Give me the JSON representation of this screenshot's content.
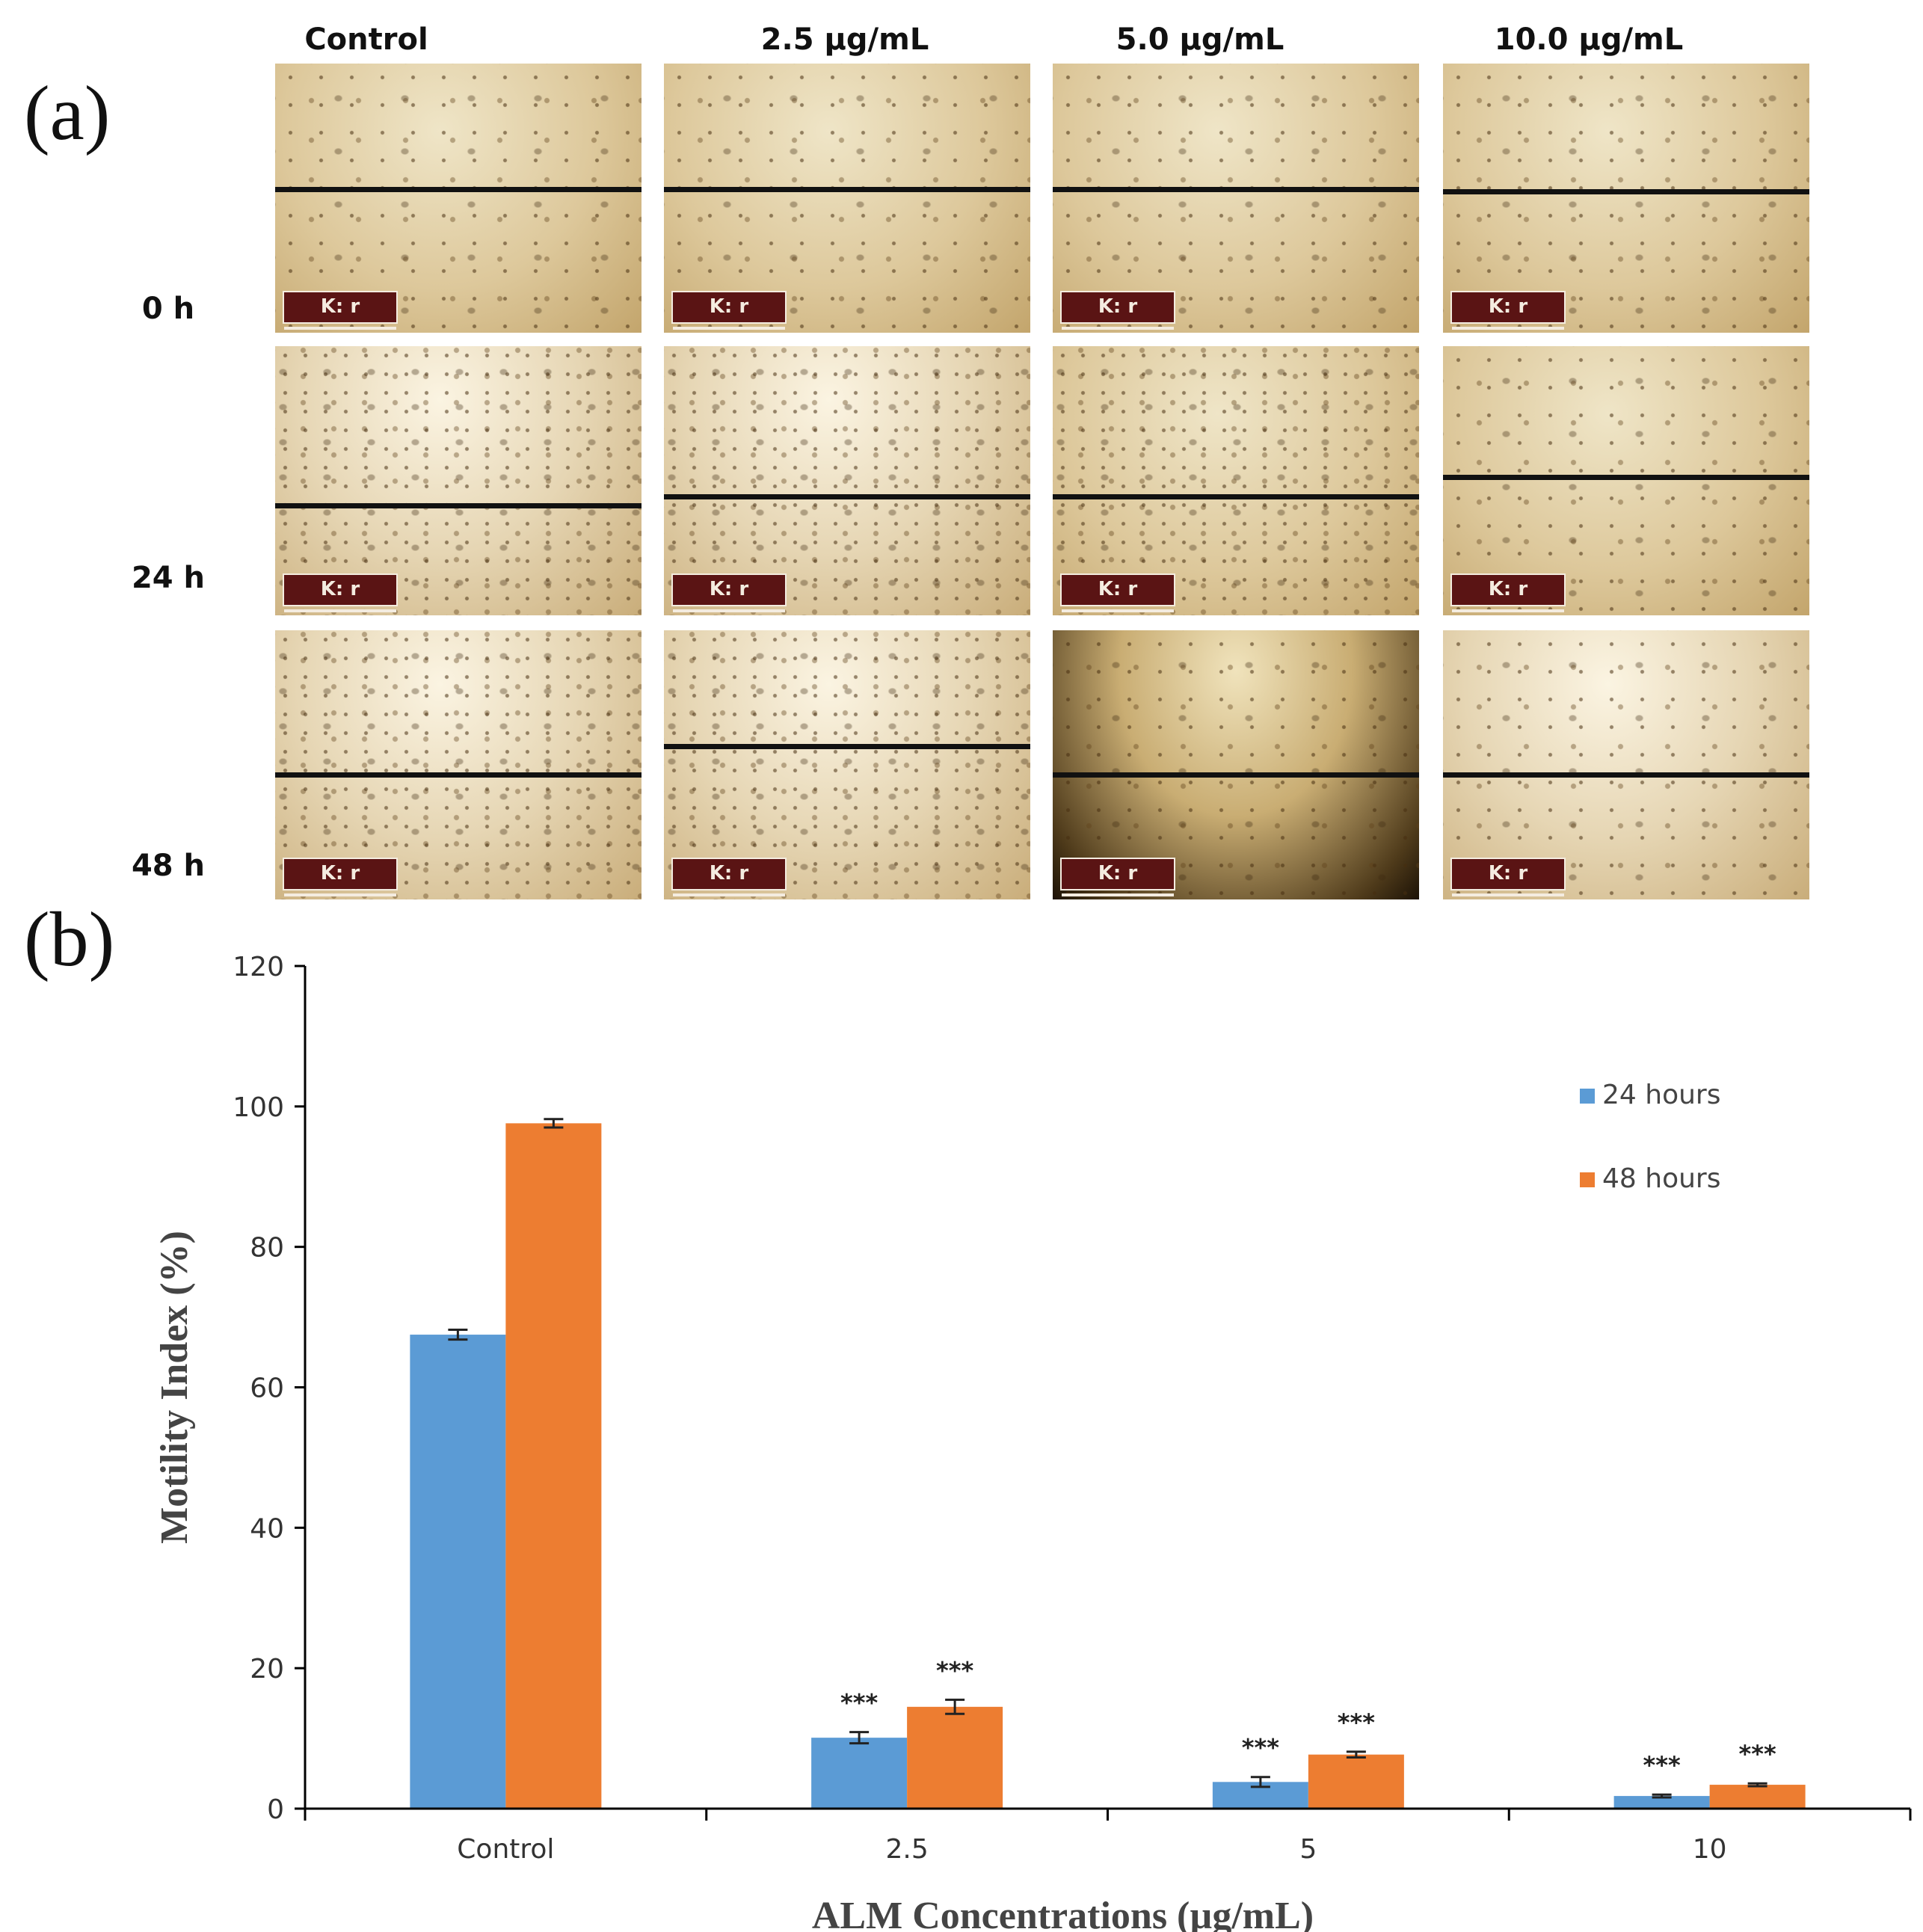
{
  "panel_a": {
    "label": "(a)",
    "columns": [
      "Control",
      "2.5 µg/mL",
      "5.0 µg/mL",
      "10.0 µg/mL"
    ],
    "rows": [
      "0 h",
      "24 h",
      "48 h"
    ],
    "scale_bar_text": "K: r"
  },
  "panel_b": {
    "label": "(b)"
  },
  "colors": {
    "series_24h": "#5b9bd5",
    "series_48h": "#ed7d31"
  },
  "chart_data": {
    "type": "bar",
    "title": "",
    "xlabel": "ALM Concentrations (µg/mL)",
    "ylabel": "Motility Index (%)",
    "categories": [
      "Control",
      "2.5",
      "5",
      "10"
    ],
    "ylim": [
      0,
      120
    ],
    "yticks": [
      0,
      20,
      40,
      60,
      80,
      100,
      120
    ],
    "legend_position": "top-right",
    "series": [
      {
        "name": "24 hours",
        "values": [
          67.5,
          10.1,
          3.8,
          1.8
        ],
        "errors": [
          0.7,
          0.8,
          0.7,
          0.2
        ],
        "annotations": [
          "",
          "***",
          "***",
          "***"
        ]
      },
      {
        "name": "48 hours",
        "values": [
          97.6,
          14.5,
          7.7,
          3.4
        ],
        "errors": [
          0.6,
          1.0,
          0.4,
          0.2
        ],
        "annotations": [
          "",
          "***",
          "***",
          "***"
        ]
      }
    ]
  }
}
